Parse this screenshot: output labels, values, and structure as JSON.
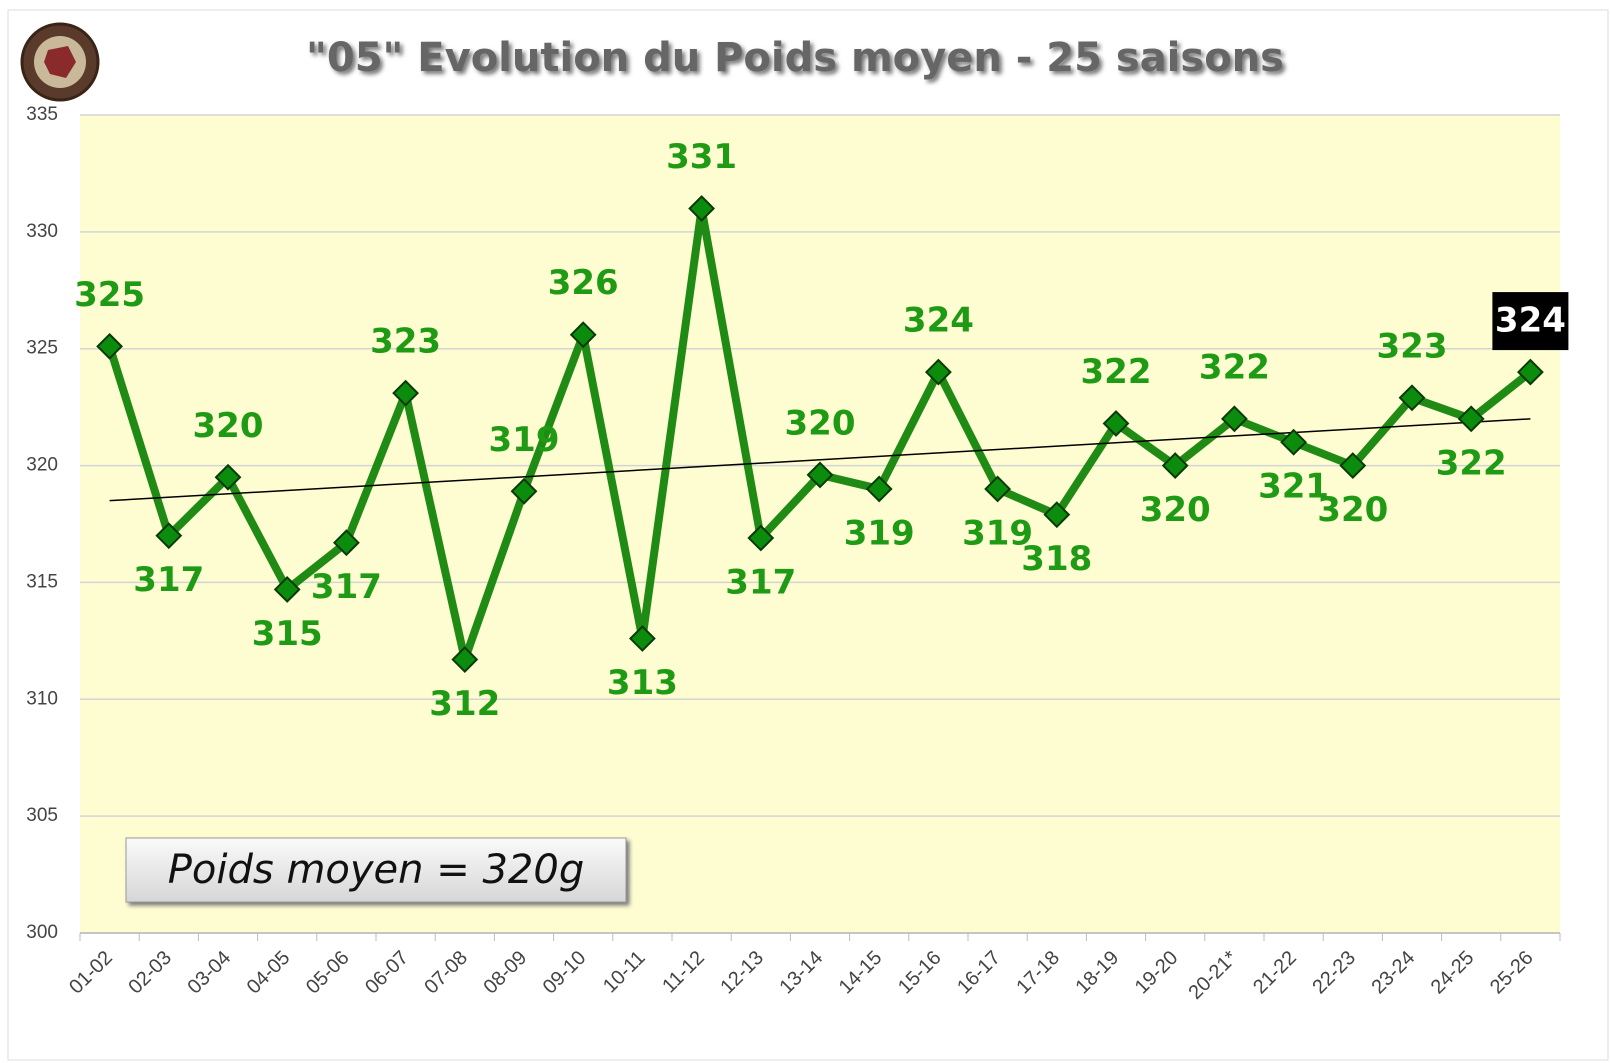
{
  "chart_data": {
    "type": "line",
    "title": "\"05\" Evolution du Poids moyen - 25 saisons",
    "annotation": "Poids moyen = 320g",
    "categories": [
      "01-02",
      "02-03",
      "03-04",
      "04-05",
      "05-06",
      "06-07",
      "07-08",
      "08-09",
      "09-10",
      "10-11",
      "11-12",
      "12-13",
      "13-14",
      "14-15",
      "15-16",
      "16-17",
      "17-18",
      "18-19",
      "19-20",
      "20-21*",
      "21-22",
      "22-23",
      "23-24",
      "24-25",
      "25-26"
    ],
    "series": [
      {
        "color": "#1f8a14",
        "values": [
          325.1,
          317.0,
          319.5,
          314.7,
          316.7,
          323.1,
          311.7,
          318.9,
          325.6,
          312.6,
          331.0,
          316.9,
          319.6,
          319.0,
          324.0,
          319.0,
          317.9,
          321.8,
          320.0,
          322.0,
          321.0,
          320.0,
          322.9,
          322.0,
          324.0
        ],
        "value_labels": [
          "325",
          "317",
          "320",
          "315",
          "317",
          "323",
          "312",
          "319",
          "326",
          "313",
          "331",
          "317",
          "320",
          "319",
          "324",
          "319",
          "318",
          "322",
          "320",
          "322",
          "321",
          "320",
          "323",
          "322",
          "324"
        ]
      }
    ],
    "trendline": {
      "start": 318.5,
      "end": 322.0,
      "color": "#000000"
    },
    "ylim": [
      300,
      335
    ],
    "yticks": [
      300,
      305,
      310,
      315,
      320,
      325,
      330,
      335
    ],
    "grid": true
  }
}
